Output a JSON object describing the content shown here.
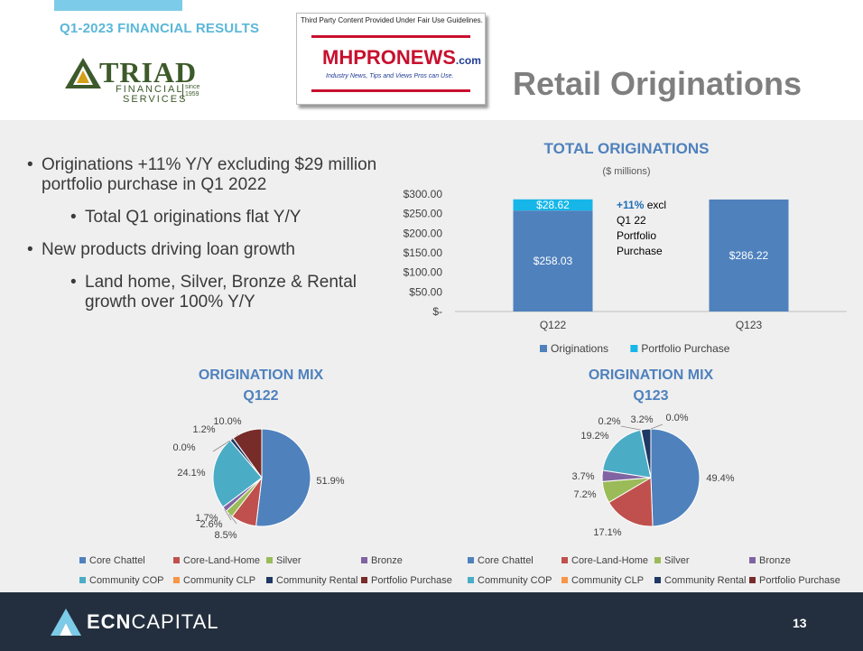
{
  "header": {
    "section_title": "Q1-2023 FINANCIAL RESULTS",
    "page_title": "Retail Originations",
    "triad_logo": {
      "word": "TRIAD",
      "line1": "FINANCIAL",
      "line2": "SERVICES",
      "since1": "since",
      "since2": "1959"
    },
    "badge": {
      "note": "Third Party Content Provided Under Fair Use Guidelines.",
      "name_a": "MHPRO",
      "name_b": "NEWS",
      "name_c": ".com",
      "tagline": "Industry News, Tips and Views Pros can Use."
    }
  },
  "bullets": [
    {
      "text": "Originations +11% Y/Y excluding $29 million portfolio purchase in Q1 2022",
      "level": 1
    },
    {
      "text": "Total Q1 originations flat Y/Y",
      "level": 2
    },
    {
      "text": "New products driving loan growth",
      "level": 1
    },
    {
      "text": "Land home, Silver, Bronze & Rental growth over 100% Y/Y",
      "level": 2
    }
  ],
  "chart_data": [
    {
      "type": "bar",
      "stacked": true,
      "title": "TOTAL ORIGINATIONS",
      "subtitle": "($ millions)",
      "categories": [
        "Q122",
        "Q123"
      ],
      "series": [
        {
          "name": "Originations",
          "values": [
            258.03,
            286.22
          ],
          "labels": [
            "$258.03",
            "$286.22"
          ],
          "color": "#4f81bd"
        },
        {
          "name": "Portfolio Purchase",
          "values": [
            28.62,
            0
          ],
          "labels": [
            "$28.62",
            ""
          ],
          "color": "#16b6e8"
        }
      ],
      "ylim": [
        0,
        300
      ],
      "yticks": [
        "$-",
        "$50.00",
        "$100.00",
        "$150.00",
        "$200.00",
        "$250.00",
        "$300.00"
      ],
      "legend": "bottom",
      "annotation": {
        "highlight": "+11%",
        "rest": "excl",
        "lines": [
          "Q1 22",
          "Portfolio",
          "Purchase"
        ]
      }
    },
    {
      "type": "pie",
      "title": "ORIGINATION MIX",
      "subtitle": "Q122",
      "categories": [
        "Core Chattel",
        "Core-Land-Home",
        "Silver",
        "Bronze",
        "Community COP",
        "Community CLP",
        "Community Rental",
        "Portfolio Purchase"
      ],
      "values": [
        51.9,
        8.5,
        2.6,
        1.7,
        24.1,
        0.0,
        1.2,
        10.0
      ],
      "labels": [
        "51.9%",
        "8.5%",
        "2.6%",
        "1.7%",
        "24.1%",
        "0.0%",
        "1.2%",
        "10.0%"
      ],
      "legend": "bottom"
    },
    {
      "type": "pie",
      "title": "ORIGINATION MIX",
      "subtitle": "Q123",
      "categories": [
        "Core Chattel",
        "Core-Land-Home",
        "Silver",
        "Bronze",
        "Community COP",
        "Community CLP",
        "Community Rental",
        "Portfolio Purchase"
      ],
      "values": [
        49.4,
        17.1,
        7.2,
        3.7,
        19.2,
        0.2,
        3.2,
        0.0
      ],
      "labels": [
        "49.4%",
        "17.1%",
        "7.2%",
        "3.7%",
        "19.2%",
        "0.2%",
        "3.2%",
        "0.0%"
      ],
      "legend": "bottom"
    }
  ],
  "colors": {
    "Core Chattel": "#4f81bd",
    "Core-Land-Home": "#c0504d",
    "Silver": "#9bbb59",
    "Bronze": "#8064a2",
    "Community COP": "#4bacc6",
    "Community CLP": "#f79646",
    "Community Rental": "#1f3864",
    "Portfolio Purchase": "#772c2a",
    "chart_title": "#4f81bd"
  },
  "footer": {
    "brand_a": "ECN",
    "brand_b": "CAPITAL",
    "page_number": "13"
  }
}
